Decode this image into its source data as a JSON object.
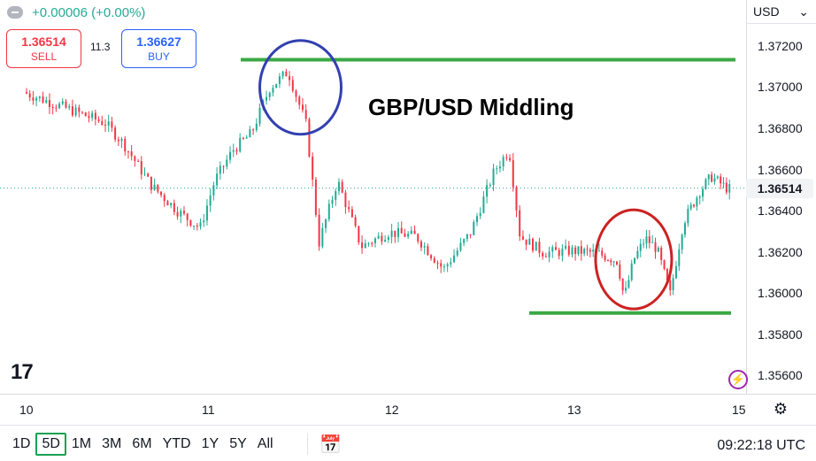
{
  "header": {
    "change_text": "+0.00006 (+0.00%)",
    "sell_price": "1.36514",
    "sell_label": "SELL",
    "spread": "11.3",
    "buy_price": "1.36627",
    "buy_label": "BUY",
    "currency": "USD",
    "currency_caret": "⌄"
  },
  "annotation_title": "GBP/USD Middling",
  "logo_text": "17",
  "toolbar": {
    "timeframes": [
      "1D",
      "5D",
      "1M",
      "3M",
      "6M",
      "YTD",
      "1Y",
      "5Y",
      "All"
    ],
    "active": "5D",
    "clock": "09:22:18 UTC"
  },
  "colors": {
    "up": "#22ab94",
    "down": "#f23645",
    "hline": "#3aa845",
    "circle_blue": "#3340b0",
    "circle_red": "#cc2222"
  },
  "chart_data": {
    "type": "candlestick",
    "title": "GBP/USD Middling",
    "last_price": "1.36514",
    "x_tick_labels": [
      "10",
      "11",
      "12",
      "13",
      "15"
    ],
    "y_tick_labels": [
      "1.37200",
      "1.37000",
      "1.36800",
      "1.36600",
      "1.36400",
      "1.36200",
      "1.36000",
      "1.35800",
      "1.35600"
    ],
    "y_ticks": [
      1.372,
      1.37,
      1.368,
      1.366,
      1.364,
      1.362,
      1.36,
      1.358,
      1.356
    ],
    "ylim": [
      1.35516,
      1.37427
    ],
    "grid": false,
    "price_path": [
      [
        0.0,
        1.3698
      ],
      [
        0.15,
        1.3693
      ],
      [
        0.3,
        1.3688
      ],
      [
        0.45,
        1.3683
      ],
      [
        0.55,
        1.3673
      ],
      [
        0.7,
        1.3653
      ],
      [
        0.85,
        1.364
      ],
      [
        0.97,
        1.3632
      ],
      [
        1.05,
        1.3655
      ],
      [
        1.15,
        1.367
      ],
      [
        1.25,
        1.3678
      ],
      [
        1.35,
        1.37
      ],
      [
        1.45,
        1.3708
      ],
      [
        1.55,
        1.3682
      ],
      [
        1.62,
        1.3625
      ],
      [
        1.72,
        1.3655
      ],
      [
        1.85,
        1.3623
      ],
      [
        2.0,
        1.363
      ],
      [
        2.15,
        1.3628
      ],
      [
        2.3,
        1.3612
      ],
      [
        2.45,
        1.363
      ],
      [
        2.58,
        1.366
      ],
      [
        2.66,
        1.367
      ],
      [
        2.72,
        1.3628
      ],
      [
        2.85,
        1.362
      ],
      [
        3.0,
        1.3621
      ],
      [
        3.15,
        1.362
      ],
      [
        3.28,
        1.3616
      ],
      [
        3.32,
        1.3598
      ],
      [
        3.38,
        1.3617
      ],
      [
        3.45,
        1.3627
      ],
      [
        3.52,
        1.3622
      ],
      [
        3.6,
        1.36
      ],
      [
        3.68,
        1.3635
      ],
      [
        3.78,
        1.365
      ],
      [
        3.85,
        1.3657
      ],
      [
        3.95,
        1.3651
      ]
    ],
    "annotations": {
      "resistance": 1.37137,
      "support": 1.35908,
      "circle_top_center": [
        1.5,
        1.37003
      ],
      "circle_bottom_center": [
        3.36,
        1.36168
      ]
    }
  }
}
